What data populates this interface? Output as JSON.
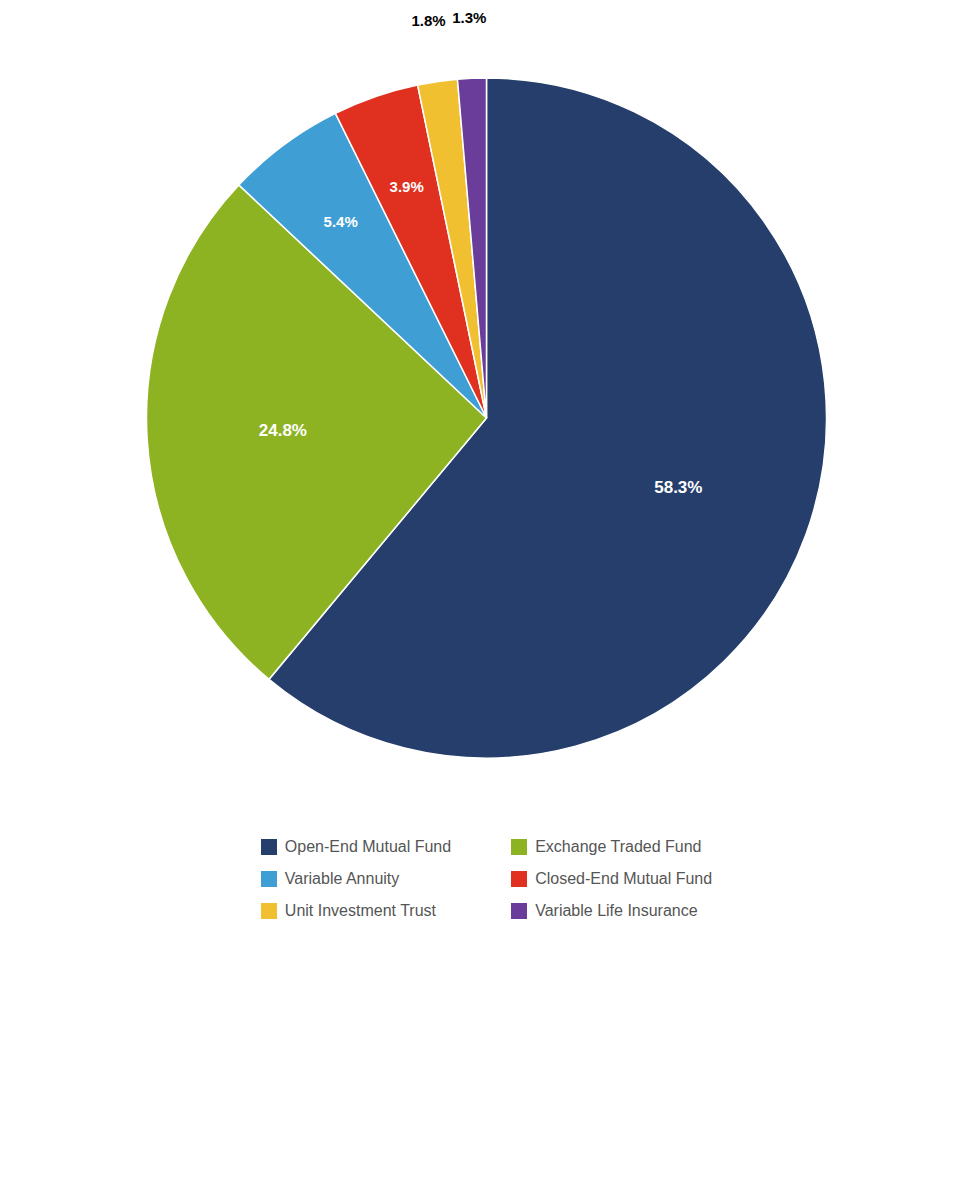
{
  "chart_data": {
    "type": "pie",
    "categories": [
      "Open-End Mutual Fund",
      "Exchange Traded Fund",
      "Variable Annuity",
      "Closed-End Mutual Fund",
      "Unit Investment Trust",
      "Variable Life Insurance"
    ],
    "values": [
      58.3,
      24.8,
      5.4,
      3.9,
      1.8,
      1.3
    ],
    "value_labels": [
      "58.3%",
      "24.8%",
      "5.4%",
      "3.9%",
      "1.8%",
      "1.3%"
    ],
    "colors": [
      "#253E6B",
      "#8DB323",
      "#3F9FD4",
      "#E03020",
      "#F0C030",
      "#6A3D9A"
    ],
    "data_labels": true,
    "legend": "bottom"
  }
}
